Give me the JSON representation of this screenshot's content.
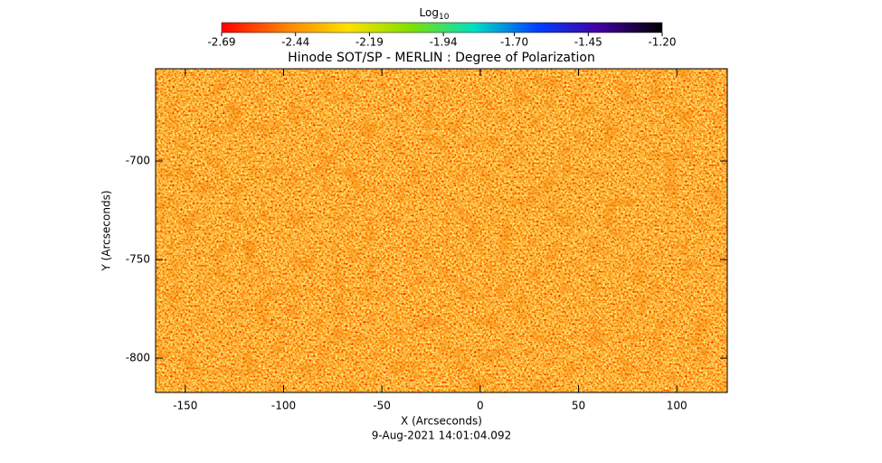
{
  "chart_data": {
    "type": "image",
    "title": "Hinode SOT/SP - MERLIN : Degree of Polarization",
    "x_label": "X (Arcseconds)",
    "y_label": "Y (Arcseconds)",
    "timestamp": "9-Aug-2021 14:01:04.092",
    "xlim": [
      -165.1,
      125.7
    ],
    "ylim": [
      -817.4,
      -653.2
    ],
    "xticks": [
      -150,
      -100,
      -50,
      0,
      50,
      100
    ],
    "yticks": [
      -700,
      -750,
      -800
    ],
    "colorbar": {
      "label": "Log",
      "label_subscript": "10",
      "lim": [
        -2.69,
        -1.2
      ],
      "ticks": [
        -2.69,
        -2.44,
        -2.19,
        -1.94,
        {
          "value": -1.7,
          "label": "-1.70"
        },
        -1.45,
        {
          "value": -1.2,
          "label": "-1.20"
        }
      ],
      "colors": [
        "#ff0000",
        "#ff8000",
        "#ffe000",
        "#80e000",
        "#00e0c0",
        "#0040ff",
        "#4000a0",
        "#000000"
      ]
    }
  }
}
